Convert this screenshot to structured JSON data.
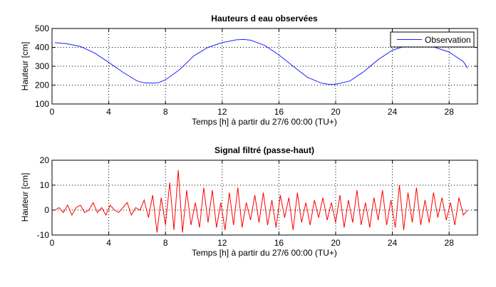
{
  "chart_data": [
    {
      "type": "line",
      "title": "Hauteurs d eau observées",
      "xlabel": "Temps  [h]  à partir du 27/6 00:00 (TU+)",
      "ylabel": "Hauteur  [cm]",
      "xlim": [
        0,
        30
      ],
      "ylim": [
        100,
        500
      ],
      "xticks": [
        0,
        4,
        8,
        12,
        16,
        20,
        24,
        28
      ],
      "yticks": [
        100,
        200,
        300,
        400,
        500
      ],
      "grid": true,
      "legend": "top-right",
      "color": "#2020ff",
      "series": [
        {
          "name": "Observation",
          "x": [
            0.2,
            1,
            2,
            3,
            4,
            5,
            6,
            6.5,
            7,
            7.5,
            8,
            9,
            10,
            11,
            12,
            13,
            13.5,
            14,
            15,
            16,
            17,
            18,
            19,
            19.5,
            20,
            21,
            22,
            23,
            24,
            24.7,
            25,
            26,
            27,
            28,
            29,
            29.3
          ],
          "y": [
            425,
            420,
            405,
            370,
            320,
            268,
            222,
            212,
            210,
            213,
            228,
            282,
            355,
            400,
            425,
            440,
            442,
            438,
            410,
            360,
            300,
            242,
            210,
            204,
            204,
            222,
            272,
            335,
            385,
            402,
            405,
            410,
            400,
            375,
            325,
            290
          ]
        }
      ]
    },
    {
      "type": "line",
      "title": "Signal filtré (passe-haut)",
      "xlabel": "Temps  [h]  à partir du 27/6 00:00 (TU+)",
      "ylabel": "Hauteur  [cm]",
      "xlim": [
        0,
        30
      ],
      "ylim": [
        -10,
        20
      ],
      "xticks": [
        0,
        4,
        8,
        12,
        16,
        20,
        24,
        28
      ],
      "yticks": [
        -10,
        0,
        10,
        20
      ],
      "grid": true,
      "color": "#ff0000",
      "series": [
        {
          "name": "Signal filtré",
          "x": [
            0.2,
            0.5,
            0.8,
            1.1,
            1.4,
            1.7,
            2,
            2.3,
            2.6,
            2.9,
            3.2,
            3.5,
            3.8,
            4.1,
            4.4,
            4.7,
            5,
            5.3,
            5.6,
            5.9,
            6.2,
            6.5,
            6.8,
            7.1,
            7.4,
            7.7,
            8,
            8.3,
            8.6,
            8.9,
            9.2,
            9.5,
            9.8,
            10.1,
            10.4,
            10.7,
            11,
            11.3,
            11.6,
            11.9,
            12.2,
            12.5,
            12.8,
            13.1,
            13.4,
            13.7,
            14,
            14.3,
            14.6,
            14.9,
            15.2,
            15.5,
            15.8,
            16.1,
            16.4,
            16.7,
            17,
            17.3,
            17.6,
            17.9,
            18.2,
            18.5,
            18.8,
            19.1,
            19.4,
            19.7,
            20,
            20.3,
            20.6,
            20.9,
            21.2,
            21.5,
            21.8,
            22.1,
            22.4,
            22.7,
            23,
            23.3,
            23.6,
            23.9,
            24.2,
            24.5,
            24.8,
            25.1,
            25.4,
            25.7,
            26,
            26.3,
            26.6,
            26.9,
            27.2,
            27.5,
            27.8,
            28.1,
            28.4,
            28.7,
            29,
            29.3
          ],
          "y": [
            0,
            1,
            -1,
            2,
            -2,
            1,
            2,
            -1,
            0,
            3,
            -1,
            1,
            -2,
            2,
            0,
            -1,
            1,
            3,
            -2,
            1,
            0,
            4,
            -3,
            6,
            -9,
            5,
            -6,
            11,
            -8,
            16,
            -9,
            8,
            -6,
            3,
            -7,
            9,
            -5,
            8,
            -7,
            3,
            -8,
            7,
            -6,
            9,
            -7,
            3,
            -4,
            6,
            -5,
            7,
            -6,
            4,
            -7,
            6,
            -3,
            5,
            -8,
            7,
            -5,
            3,
            -6,
            4,
            -3,
            5,
            -4,
            3,
            -5,
            6,
            -7,
            4,
            -5,
            8,
            -6,
            3,
            -7,
            5,
            -4,
            8,
            -6,
            4,
            -7,
            10,
            -8,
            7,
            -5,
            9,
            -6,
            4,
            -5,
            7,
            -3,
            5,
            -4,
            3,
            -6,
            5,
            -2,
            0
          ]
        }
      ]
    }
  ]
}
